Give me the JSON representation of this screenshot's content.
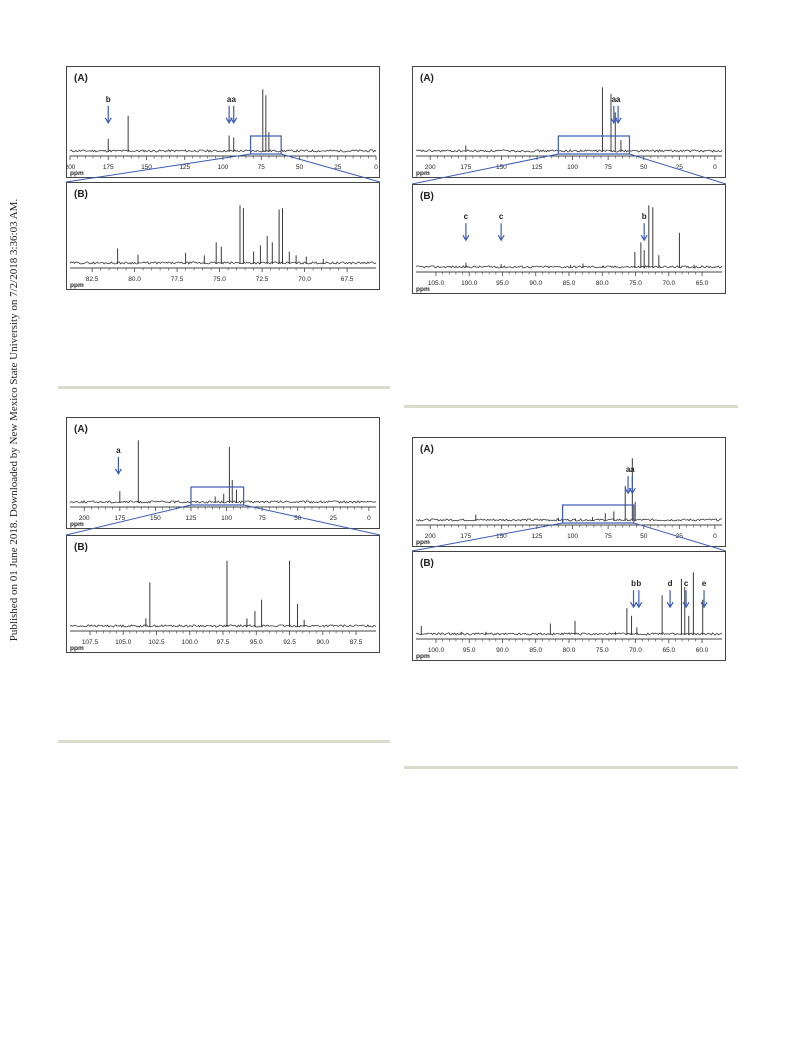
{
  "sidebar": {
    "text": "Published on 01 June 2018. Downloaded by New Mexico State University on 7/2/2018 3:36:03 AM."
  },
  "figures": [
    {
      "id": "top-left",
      "panel_a": {
        "label": "(A)",
        "axis_unit": "ppm",
        "ticks": [
          "200",
          "175",
          "150",
          "125",
          "100",
          "75",
          "50",
          "25",
          "0"
        ],
        "annotations": [
          {
            "letter": "b",
            "ppm": 175
          },
          {
            "letter": "a",
            "ppm": 96
          },
          {
            "letter": "a",
            "ppm": 93
          }
        ]
      },
      "panel_b": {
        "label": "(B)",
        "axis_unit": "ppm",
        "ticks": [
          "82.5",
          "80.0",
          "77.5",
          "75.0",
          "72.5",
          "70.0",
          "67.5"
        ],
        "annotations": []
      }
    },
    {
      "id": "top-right",
      "panel_a": {
        "label": "(A)",
        "axis_unit": "ppm",
        "ticks": [
          "200",
          "175",
          "150",
          "125",
          "100",
          "75",
          "50",
          "25",
          "0"
        ],
        "annotations": [
          {
            "letter": "a",
            "ppm": 71
          },
          {
            "letter": "a",
            "ppm": 68
          }
        ]
      },
      "panel_b": {
        "label": "(B)",
        "axis_unit": "ppm",
        "ticks": [
          "105.0",
          "100.0",
          "95.0",
          "90.0",
          "85.0",
          "80.0",
          "75.0",
          "70.0",
          "65.0"
        ],
        "annotations": [
          {
            "letter": "c",
            "ppm": 100.5
          },
          {
            "letter": "c",
            "ppm": 95.2
          },
          {
            "letter": "b",
            "ppm": 73.7
          }
        ]
      }
    },
    {
      "id": "bottom-left",
      "panel_a": {
        "label": "(A)",
        "axis_unit": "ppm",
        "ticks": [
          "200",
          "175",
          "150",
          "125",
          "100",
          "75",
          "50",
          "25",
          "0"
        ],
        "annotations": [
          {
            "letter": "a",
            "ppm": 176
          }
        ]
      },
      "panel_b": {
        "label": "(B)",
        "axis_unit": "ppm",
        "ticks": [
          "107.5",
          "105.0",
          "102.5",
          "100.0",
          "97.5",
          "95.0",
          "92.5",
          "90.0",
          "87.5"
        ],
        "annotations": []
      }
    },
    {
      "id": "bottom-right",
      "panel_a": {
        "label": "(A)",
        "axis_unit": "ppm",
        "ticks": [
          "200",
          "175",
          "150",
          "125",
          "100",
          "75",
          "50",
          "25",
          "0"
        ],
        "annotations": [
          {
            "letter": "a",
            "ppm": 61
          },
          {
            "letter": "a",
            "ppm": 58
          }
        ]
      },
      "panel_b": {
        "label": "(B)",
        "axis_unit": "ppm",
        "ticks": [
          "100.0",
          "95.0",
          "90.0",
          "85.0",
          "80.0",
          "75.0",
          "70.0",
          "65.0",
          "60.0"
        ],
        "annotations": [
          {
            "letter": "b",
            "ppm": 70.3
          },
          {
            "letter": "b",
            "ppm": 69.5
          },
          {
            "letter": "d",
            "ppm": 64.8
          },
          {
            "letter": "c",
            "ppm": 62.4
          },
          {
            "letter": "e",
            "ppm": 59.7
          }
        ]
      }
    }
  ],
  "colors": {
    "frame": "#444444",
    "spectrum": "#3a3a3a",
    "accent": "#3b5bb5",
    "divider": "#d9dccd"
  }
}
